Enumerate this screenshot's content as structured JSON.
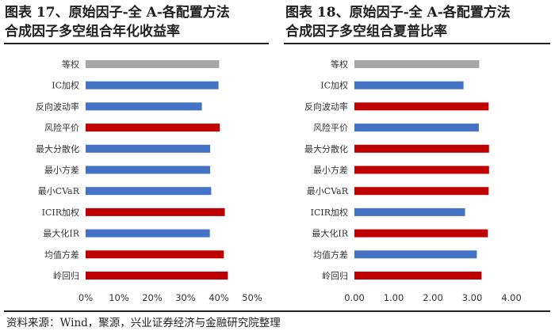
{
  "titles": {
    "left": [
      "图表 17、原始因子-全 A-各配置方法",
      "合成因子多空组合年化收益率"
    ],
    "right": [
      "图表 18、原始因子-全 A-各配置方法",
      "合成因子多空组合夏普比率"
    ]
  },
  "source": "资料来源：Wind，聚源，兴业证券经济与金融研究院整理",
  "colors": {
    "gray": "#a6a6a6",
    "blue": "#4472c4",
    "red": "#c00000"
  },
  "chart_data": [
    {
      "type": "bar",
      "orientation": "horizontal",
      "categories": [
        "等权",
        "IC加权",
        "反向波动率",
        "风险平价",
        "最大分散化",
        "最小方差",
        "最小CVaR",
        "ICIR加权",
        "最大化IR",
        "均值方差",
        "岭回归"
      ],
      "values": [
        0.401,
        0.399,
        0.349,
        0.403,
        0.374,
        0.374,
        0.377,
        0.418,
        0.373,
        0.415,
        0.427
      ],
      "bar_colors": [
        "gray",
        "blue",
        "blue",
        "red",
        "blue",
        "blue",
        "blue",
        "red",
        "blue",
        "red",
        "red"
      ],
      "xlim": [
        0,
        0.5
      ],
      "xticks": [
        0,
        0.1,
        0.2,
        0.3,
        0.4,
        0.5
      ],
      "xtick_labels": [
        "0%",
        "10%",
        "20%",
        "30%",
        "40%",
        "50%"
      ]
    },
    {
      "type": "bar",
      "orientation": "horizontal",
      "categories": [
        "等权",
        "IC加权",
        "反向波动率",
        "风险平价",
        "最大分散化",
        "最小方差",
        "最小CVaR",
        "ICIR加权",
        "最大化IR",
        "均值方差",
        "岭回归"
      ],
      "values": [
        3.18,
        2.78,
        3.42,
        3.17,
        3.43,
        3.43,
        3.42,
        2.82,
        3.4,
        3.12,
        3.24
      ],
      "bar_colors": [
        "gray",
        "blue",
        "red",
        "blue",
        "red",
        "red",
        "red",
        "blue",
        "red",
        "blue",
        "red"
      ],
      "xlim": [
        0,
        4
      ],
      "xticks": [
        0,
        1,
        2,
        3,
        4
      ],
      "xtick_labels": [
        "0.00",
        "1.00",
        "2.00",
        "3.00",
        "4.00"
      ]
    }
  ]
}
